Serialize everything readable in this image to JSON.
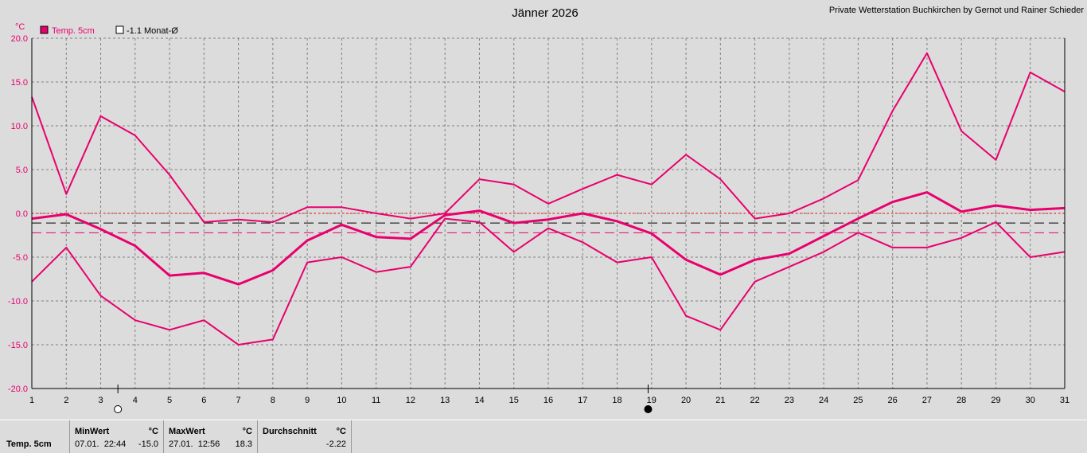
{
  "header": {
    "title": "Jänner 2026",
    "credit": "Private Wetterstation Buchkirchen by Gernot und Rainer Schieder",
    "y_unit": "°C"
  },
  "legend": {
    "series_label": "Temp. 5cm",
    "avg_label": "-1.1 Monat-Ø"
  },
  "colors": {
    "series": "#e8006e",
    "background": "#dcdcdc",
    "grid": "#808080",
    "zero_line": "#ff0000",
    "month_avg_line": "#000000"
  },
  "chart_data": {
    "type": "line",
    "x": [
      1,
      2,
      3,
      4,
      5,
      6,
      7,
      8,
      9,
      10,
      11,
      12,
      13,
      14,
      15,
      16,
      17,
      18,
      19,
      20,
      21,
      22,
      23,
      24,
      25,
      26,
      27,
      28,
      29,
      30,
      31
    ],
    "xlim": [
      1,
      31
    ],
    "ylim": [
      -20,
      20
    ],
    "y_ticks": [
      20,
      15,
      10,
      5,
      0,
      -5,
      -10,
      -15,
      -20
    ],
    "grid": true,
    "series": [
      {
        "key": "max",
        "values": [
          13.3,
          2.2,
          11.1,
          8.9,
          4.4,
          -1.0,
          -0.7,
          -1.0,
          0.7,
          0.7,
          0.0,
          -0.6,
          0.0,
          3.9,
          3.3,
          1.1,
          2.8,
          4.4,
          3.3,
          6.7,
          3.9,
          -0.6,
          0.0,
          1.7,
          3.8,
          11.7,
          18.3,
          9.4,
          6.1,
          16.1,
          13.9
        ]
      },
      {
        "key": "mean",
        "values": [
          -0.6,
          -0.1,
          -1.8,
          -3.7,
          -7.1,
          -6.8,
          -8.1,
          -6.5,
          -3.1,
          -1.3,
          -2.7,
          -2.9,
          -0.2,
          0.3,
          -1.1,
          -0.7,
          0.0,
          -0.9,
          -2.3,
          -5.3,
          -7.0,
          -5.3,
          -4.6,
          -2.6,
          -0.6,
          1.3,
          2.4,
          0.2,
          0.9,
          0.4,
          0.6
        ]
      },
      {
        "key": "min",
        "values": [
          -7.8,
          -3.9,
          -9.4,
          -12.2,
          -13.3,
          -12.2,
          -15.0,
          -14.4,
          -5.6,
          -5.0,
          -6.7,
          -6.1,
          -0.6,
          -1.0,
          -4.4,
          -1.7,
          -3.3,
          -5.6,
          -5.0,
          -11.7,
          -13.3,
          -7.8,
          -6.1,
          -4.4,
          -2.2,
          -3.9,
          -3.9,
          -2.8,
          -1.0,
          -5.0,
          -4.4
        ]
      }
    ],
    "reference_lines": [
      {
        "key": "month_avg",
        "value": -1.1,
        "color": "#000000",
        "style": "dashed"
      },
      {
        "key": "series_mean",
        "value": -2.22,
        "color": "#e8006e",
        "style": "dashed"
      },
      {
        "key": "zero",
        "value": 0,
        "color": "#ff0000",
        "style": "dotted"
      }
    ],
    "moon_phases": [
      {
        "day": 3.5,
        "phase": "full-moon"
      },
      {
        "day": 18.9,
        "phase": "new-moon"
      }
    ]
  },
  "stats": {
    "row_label": "Temp. 5cm",
    "min": {
      "label": "MinWert",
      "unit": "°C",
      "when": "07.01.  22:44",
      "value": "-15.0"
    },
    "max": {
      "label": "MaxWert",
      "unit": "°C",
      "when": "27.01.  12:56",
      "value": "18.3"
    },
    "avg": {
      "label": "Durchschnitt",
      "unit": "°C",
      "value": "-2.22"
    }
  }
}
